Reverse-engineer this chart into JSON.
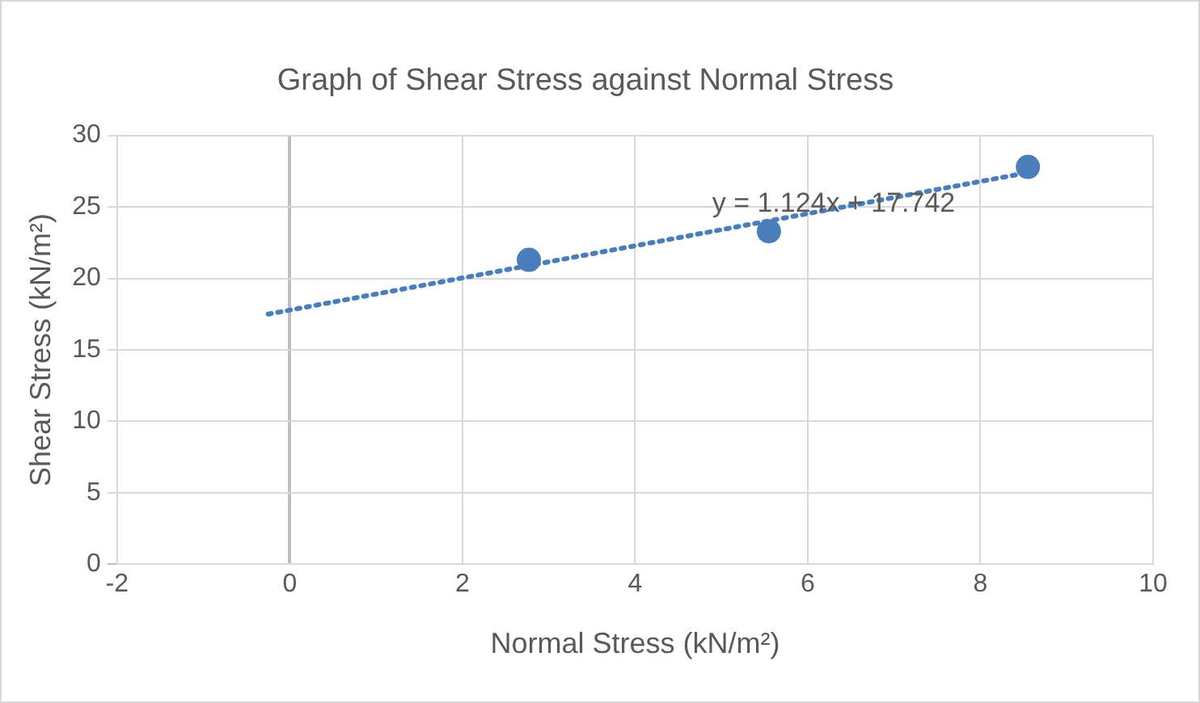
{
  "chart_data": {
    "type": "scatter",
    "title": "Graph of Shear Stress against Normal Stress",
    "xlabel": "Normal Stress (kN/m²)",
    "ylabel": "Shear Stress (kN/m²)",
    "x": [
      2.77,
      5.55,
      8.55
    ],
    "series": [
      {
        "color": "#4a7ebb",
        "values": [
          21.3,
          23.3,
          27.8
        ],
        "marker": "circle"
      },
      {
        "type": "line",
        "color": "#4a7ebb",
        "x": [
          -0.25,
          8.55
        ],
        "values": [
          17.5,
          27.4
        ],
        "marker": "none",
        "line_style": "dotted"
      }
    ],
    "annotations": [
      {
        "text": "y = 1.124x + 17.742",
        "x": 6.3,
        "y": 25.2
      }
    ],
    "xlim": [
      -2,
      10
    ],
    "xticks": [
      -2,
      0,
      2,
      4,
      6,
      8,
      10
    ],
    "ylim": [
      0,
      30
    ],
    "yticks": [
      0,
      5,
      10,
      15,
      20,
      25,
      30
    ],
    "grid": true,
    "legend": false
  }
}
